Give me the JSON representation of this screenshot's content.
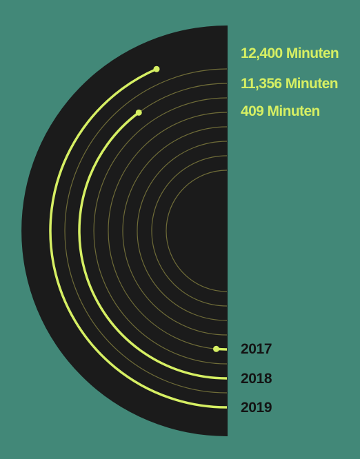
{
  "colors": {
    "background": "#428878",
    "disc": "#1b1b1b",
    "highlight": "#d6ef63",
    "guide_ring": "#6f6c38",
    "year_text": "#141414"
  },
  "chart_data": {
    "type": "radial-arc",
    "unit": "Minuten",
    "value_labels": [
      "12,400 Minuten",
      "11,356 Minuten",
      "409 Minuten"
    ],
    "series": [
      {
        "year": "2019",
        "value": 12400,
        "label": "12,400 Minuten"
      },
      {
        "year": "2018",
        "value": 11356,
        "label": "11,356 Minuten"
      },
      {
        "year": "2017",
        "value": 409,
        "label": "409 Minuten"
      }
    ],
    "year_labels": [
      "2017",
      "2018",
      "2019"
    ],
    "guide_rings": 8
  }
}
